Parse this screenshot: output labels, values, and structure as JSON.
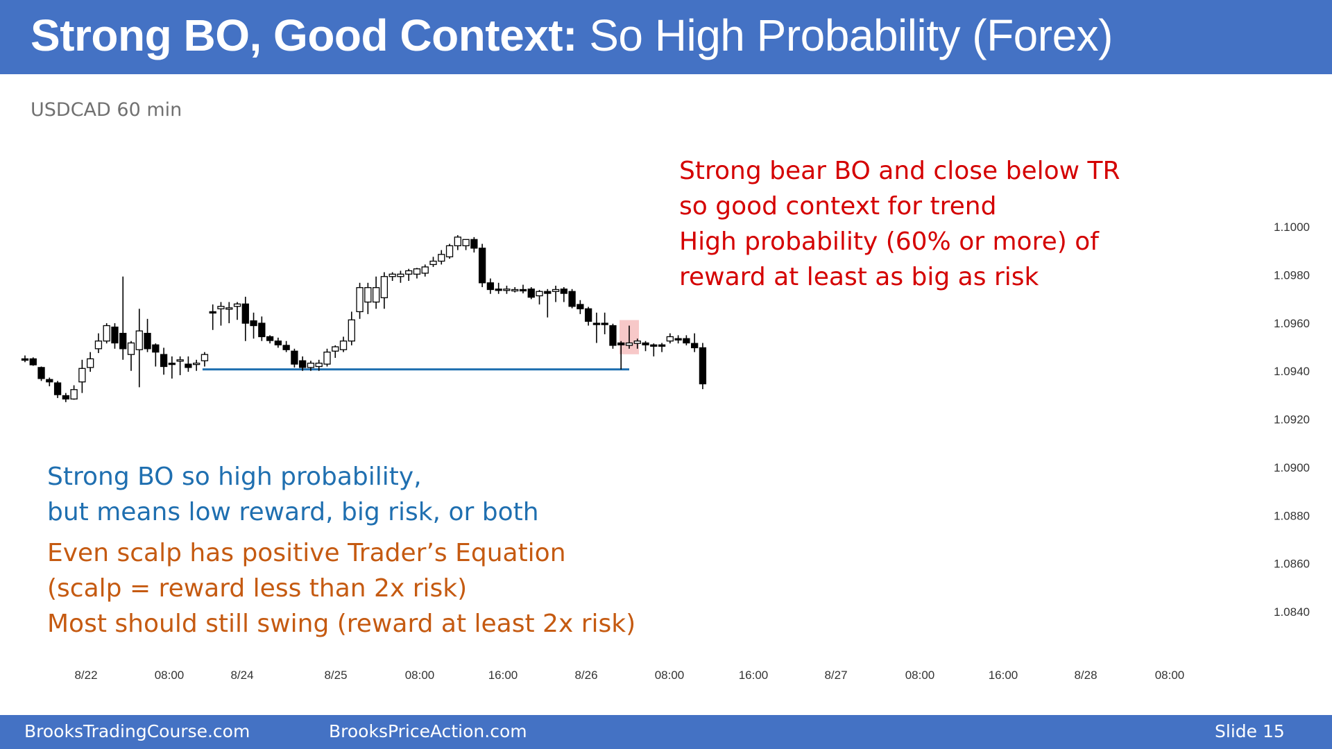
{
  "slide": {
    "title_bold": "Strong BO, Good Context:",
    "title_rest": " So High Probability (Forex)",
    "subtitle": "USDCAD 60 min",
    "footer_left": "BrooksTradingCourse.com",
    "footer_center": "BrooksPriceAction.com",
    "footer_slide": "Slide  15"
  },
  "annotations": {
    "red_lines": [
      "Strong bear BO and close below TR",
      "so good context for trend",
      "High probability (60% or more) of",
      "reward at least as big as risk"
    ],
    "blue_lines": [
      "Strong BO so high probability,",
      "but means low reward, big risk, or both"
    ],
    "orange_lines": [
      "Even scalp has positive Trader’s Equation",
      "(scalp = reward less than 2x risk)",
      "Most should still swing (reward at least 2x risk)"
    ]
  },
  "colors": {
    "header_bg": "#4472c4",
    "support_line": "#1f6fb0",
    "highlight": "#f4b6b6",
    "red_text": "#d40000",
    "blue_text": "#1f6fb0",
    "orange_text": "#c55a11"
  },
  "chart_data": {
    "type": "candlestick",
    "symbol": "USDCAD",
    "timeframe": "60 min",
    "y_ticks": [
      "1.1000",
      "1.0980",
      "1.0960",
      "1.0940",
      "1.0920",
      "1.0900",
      "1.0880",
      "1.0860",
      "1.0840"
    ],
    "y_range": [
      1.0834,
      1.101
    ],
    "x_ticks": [
      "8/22",
      "08:00",
      "8/24",
      "8/25",
      "08:00",
      "16:00",
      "8/26",
      "08:00",
      "16:00",
      "8/27",
      "08:00",
      "16:00",
      "8/28",
      "08:00"
    ],
    "support_level": 1.0941,
    "support_from_bar": 22,
    "support_to_bar": 74,
    "highlight_bar": 74,
    "candles": [
      {
        "o": 1.09454,
        "h": 1.09468,
        "l": 1.0944,
        "c": 1.09454
      },
      {
        "o": 1.09454,
        "h": 1.0946,
        "l": 1.09425,
        "c": 1.09429
      },
      {
        "o": 1.09418,
        "h": 1.09422,
        "l": 1.09362,
        "c": 1.09372
      },
      {
        "o": 1.09368,
        "h": 1.09376,
        "l": 1.0934,
        "c": 1.09358
      },
      {
        "o": 1.09354,
        "h": 1.09362,
        "l": 1.09291,
        "c": 1.09305
      },
      {
        "o": 1.09301,
        "h": 1.09312,
        "l": 1.09274,
        "c": 1.09287
      },
      {
        "o": 1.09287,
        "h": 1.09344,
        "l": 1.09284,
        "c": 1.09326
      },
      {
        "o": 1.09358,
        "h": 1.0945,
        "l": 1.09312,
        "c": 1.09414
      },
      {
        "o": 1.09418,
        "h": 1.09482,
        "l": 1.094,
        "c": 1.09454
      },
      {
        "o": 1.09496,
        "h": 1.0956,
        "l": 1.09478,
        "c": 1.09528
      },
      {
        "o": 1.09528,
        "h": 1.09602,
        "l": 1.09518,
        "c": 1.09592
      },
      {
        "o": 1.09586,
        "h": 1.09602,
        "l": 1.09496,
        "c": 1.0952
      },
      {
        "o": 1.0956,
        "h": 1.09796,
        "l": 1.0945,
        "c": 1.09496
      },
      {
        "o": 1.09472,
        "h": 1.09528,
        "l": 1.09404,
        "c": 1.0952
      },
      {
        "o": 1.09492,
        "h": 1.09662,
        "l": 1.09336,
        "c": 1.0957
      },
      {
        "o": 1.0956,
        "h": 1.0962,
        "l": 1.09482,
        "c": 1.09496
      },
      {
        "o": 1.09512,
        "h": 1.09518,
        "l": 1.09422,
        "c": 1.09482
      },
      {
        "o": 1.09472,
        "h": 1.095,
        "l": 1.09388,
        "c": 1.09422
      },
      {
        "o": 1.09436,
        "h": 1.09464,
        "l": 1.09372,
        "c": 1.09432
      },
      {
        "o": 1.09446,
        "h": 1.09464,
        "l": 1.09386,
        "c": 1.0945
      },
      {
        "o": 1.09432,
        "h": 1.09464,
        "l": 1.094,
        "c": 1.09418
      },
      {
        "o": 1.09432,
        "h": 1.0945,
        "l": 1.09404,
        "c": 1.09436
      },
      {
        "o": 1.09446,
        "h": 1.09482,
        "l": 1.09422,
        "c": 1.09472
      },
      {
        "o": 1.0965,
        "h": 1.0968,
        "l": 1.09574,
        "c": 1.09646
      },
      {
        "o": 1.09662,
        "h": 1.0969,
        "l": 1.09592,
        "c": 1.09672
      },
      {
        "o": 1.09662,
        "h": 1.0969,
        "l": 1.09602,
        "c": 1.09666
      },
      {
        "o": 1.09672,
        "h": 1.0969,
        "l": 1.09616,
        "c": 1.09682
      },
      {
        "o": 1.09682,
        "h": 1.09712,
        "l": 1.09528,
        "c": 1.09602
      },
      {
        "o": 1.09612,
        "h": 1.09646,
        "l": 1.09538,
        "c": 1.09592
      },
      {
        "o": 1.09602,
        "h": 1.0963,
        "l": 1.09528,
        "c": 1.09546
      },
      {
        "o": 1.09546,
        "h": 1.09552,
        "l": 1.09518,
        "c": 1.0953
      },
      {
        "o": 1.09528,
        "h": 1.09542,
        "l": 1.095,
        "c": 1.09512
      },
      {
        "o": 1.0951,
        "h": 1.09528,
        "l": 1.09482,
        "c": 1.09492
      },
      {
        "o": 1.09486,
        "h": 1.09496,
        "l": 1.09418,
        "c": 1.09432
      },
      {
        "o": 1.09446,
        "h": 1.09464,
        "l": 1.09404,
        "c": 1.09418
      },
      {
        "o": 1.09418,
        "h": 1.09446,
        "l": 1.09404,
        "c": 1.09436
      },
      {
        "o": 1.09422,
        "h": 1.0945,
        "l": 1.09404,
        "c": 1.09436
      },
      {
        "o": 1.09432,
        "h": 1.09496,
        "l": 1.09422,
        "c": 1.09482
      },
      {
        "o": 1.09486,
        "h": 1.0951,
        "l": 1.09458,
        "c": 1.09504
      },
      {
        "o": 1.09492,
        "h": 1.09546,
        "l": 1.09482,
        "c": 1.09528
      },
      {
        "o": 1.09528,
        "h": 1.0965,
        "l": 1.0951,
        "c": 1.09616
      },
      {
        "o": 1.0965,
        "h": 1.0977,
        "l": 1.0962,
        "c": 1.0975
      },
      {
        "o": 1.0969,
        "h": 1.0977,
        "l": 1.0964,
        "c": 1.0975
      },
      {
        "o": 1.0969,
        "h": 1.09796,
        "l": 1.09662,
        "c": 1.0975
      },
      {
        "o": 1.09708,
        "h": 1.09814,
        "l": 1.09662,
        "c": 1.09796
      },
      {
        "o": 1.09796,
        "h": 1.09814,
        "l": 1.09778,
        "c": 1.09806
      },
      {
        "o": 1.09796,
        "h": 1.0982,
        "l": 1.0977,
        "c": 1.09806
      },
      {
        "o": 1.09806,
        "h": 1.09828,
        "l": 1.09778,
        "c": 1.0982
      },
      {
        "o": 1.09806,
        "h": 1.09832,
        "l": 1.09788,
        "c": 1.09828
      },
      {
        "o": 1.0981,
        "h": 1.09846,
        "l": 1.09796,
        "c": 1.09836
      },
      {
        "o": 1.09846,
        "h": 1.09878,
        "l": 1.09836,
        "c": 1.0986
      },
      {
        "o": 1.0986,
        "h": 1.09906,
        "l": 1.09846,
        "c": 1.09888
      },
      {
        "o": 1.09878,
        "h": 1.09932,
        "l": 1.0987,
        "c": 1.09924
      },
      {
        "o": 1.09924,
        "h": 1.09968,
        "l": 1.09906,
        "c": 1.0996
      },
      {
        "o": 1.09924,
        "h": 1.0995,
        "l": 1.09906,
        "c": 1.0995
      },
      {
        "o": 1.0995,
        "h": 1.0996,
        "l": 1.09896,
        "c": 1.09914
      },
      {
        "o": 1.09914,
        "h": 1.09932,
        "l": 1.09752,
        "c": 1.0977
      },
      {
        "o": 1.0977,
        "h": 1.09788,
        "l": 1.09724,
        "c": 1.09742
      },
      {
        "o": 1.09744,
        "h": 1.0977,
        "l": 1.09724,
        "c": 1.0974
      },
      {
        "o": 1.0974,
        "h": 1.09758,
        "l": 1.09724,
        "c": 1.09744
      },
      {
        "o": 1.0974,
        "h": 1.09752,
        "l": 1.0973,
        "c": 1.09742
      },
      {
        "o": 1.09742,
        "h": 1.09762,
        "l": 1.09726,
        "c": 1.0974
      },
      {
        "o": 1.09744,
        "h": 1.09752,
        "l": 1.09702,
        "c": 1.0971
      },
      {
        "o": 1.09716,
        "h": 1.0974,
        "l": 1.0968,
        "c": 1.09734
      },
      {
        "o": 1.09734,
        "h": 1.09744,
        "l": 1.09626,
        "c": 1.09726
      },
      {
        "o": 1.09734,
        "h": 1.09758,
        "l": 1.0969,
        "c": 1.09742
      },
      {
        "o": 1.09744,
        "h": 1.09752,
        "l": 1.0969,
        "c": 1.09726
      },
      {
        "o": 1.09734,
        "h": 1.09744,
        "l": 1.09664,
        "c": 1.09672
      },
      {
        "o": 1.0968,
        "h": 1.09698,
        "l": 1.0964,
        "c": 1.09662
      },
      {
        "o": 1.09662,
        "h": 1.0967,
        "l": 1.09592,
        "c": 1.0961
      },
      {
        "o": 1.09602,
        "h": 1.09646,
        "l": 1.0952,
        "c": 1.09602
      },
      {
        "o": 1.09602,
        "h": 1.09646,
        "l": 1.09556,
        "c": 1.09602
      },
      {
        "o": 1.09592,
        "h": 1.096,
        "l": 1.09496,
        "c": 1.0951
      },
      {
        "o": 1.0952,
        "h": 1.09528,
        "l": 1.0941,
        "c": 1.09512
      },
      {
        "o": 1.0951,
        "h": 1.09592,
        "l": 1.09496,
        "c": 1.0952
      },
      {
        "o": 1.09518,
        "h": 1.09538,
        "l": 1.09496,
        "c": 1.09528
      },
      {
        "o": 1.0952,
        "h": 1.09528,
        "l": 1.09486,
        "c": 1.09512
      },
      {
        "o": 1.09512,
        "h": 1.09518,
        "l": 1.09464,
        "c": 1.0951
      },
      {
        "o": 1.09512,
        "h": 1.0952,
        "l": 1.09482,
        "c": 1.0951
      },
      {
        "o": 1.09528,
        "h": 1.0956,
        "l": 1.09518,
        "c": 1.09546
      },
      {
        "o": 1.09538,
        "h": 1.09552,
        "l": 1.09518,
        "c": 1.09538
      },
      {
        "o": 1.09538,
        "h": 1.09552,
        "l": 1.0951,
        "c": 1.0952
      },
      {
        "o": 1.09518,
        "h": 1.0956,
        "l": 1.09482,
        "c": 1.095
      },
      {
        "o": 1.095,
        "h": 1.0952,
        "l": 1.09328,
        "c": 1.0935
      }
    ]
  }
}
